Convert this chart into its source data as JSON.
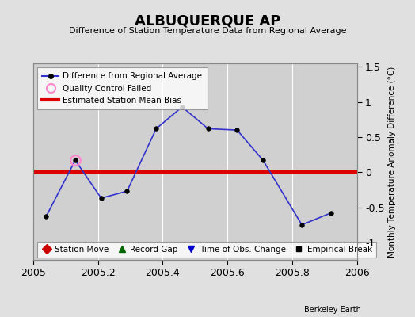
{
  "title": "ALBUQUERQUE AP",
  "subtitle": "Difference of Station Temperature Data from Regional Average",
  "ylabel_right": "Monthly Temperature Anomaly Difference (°C)",
  "x_data": [
    2005.04,
    2005.13,
    2005.21,
    2005.29,
    2005.38,
    2005.46,
    2005.54,
    2005.63,
    2005.71,
    2005.83,
    2005.92
  ],
  "y_data": [
    -0.63,
    0.17,
    -0.37,
    -0.27,
    0.62,
    0.93,
    0.62,
    0.6,
    0.17,
    -0.75,
    -0.58
  ],
  "qc_failed_x": [
    2005.13
  ],
  "qc_failed_y": [
    0.17
  ],
  "bias_value": 0.0,
  "line_color": "#3333cc",
  "marker_color": "#000000",
  "bias_color": "#dd0000",
  "qc_color": "#ff88cc",
  "xlim": [
    2005.0,
    2006.0
  ],
  "ylim": [
    -1.25,
    1.55
  ],
  "yticks_right": [
    -1.0,
    -0.5,
    0.0,
    0.5,
    1.0,
    1.5
  ],
  "xticks": [
    2005.0,
    2005.2,
    2005.4,
    2005.6,
    2005.8,
    2006.0
  ],
  "background_color": "#e0e0e0",
  "plot_bg_color": "#d0d0d0",
  "grid_color": "#ffffff",
  "footer": "Berkeley Earth",
  "legend1_items": [
    "Difference from Regional Average",
    "Quality Control Failed",
    "Estimated Station Mean Bias"
  ],
  "legend2_items": [
    "Station Move",
    "Record Gap",
    "Time of Obs. Change",
    "Empirical Break"
  ]
}
